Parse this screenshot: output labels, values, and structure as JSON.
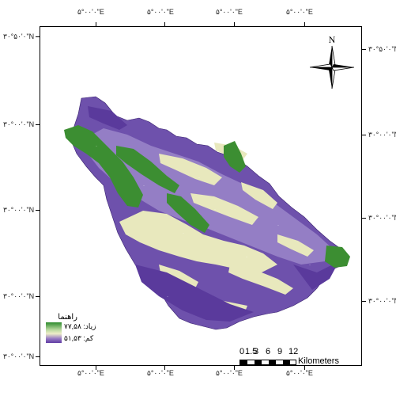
{
  "graticule": {
    "top_labels": [
      "۵°۰۰'۰\"E",
      "۵°۰۰'۰\"E",
      "۵°۰۰'۰\"E",
      "۵°۰۰'۰\"E"
    ],
    "bottom_labels": [
      "۵°۰۰'۰\"E",
      "۵°۰۰'۰\"E",
      "۵°۰۰'۰\"E",
      "۵°۰۰'۰\"E"
    ],
    "left_labels": [
      "۳۰°۵۰'۰\"N",
      "۳۰°۰۰'۰\"N",
      "۳۰°۰۰'۰\"N",
      "۳۰°۰۰'۰\"N",
      "۳۰°۰۰'۰\"N"
    ],
    "right_labels": [
      "۳۰°۵۰'۰\"N",
      "۳۰°۰۰'۰\"N",
      "۳۰°۰۰'۰\"N",
      "۳۰°۰۰'۰\"N"
    ]
  },
  "north_arrow": {
    "label": "N",
    "icon": "north-arrow-icon"
  },
  "legend": {
    "title": "راهنما",
    "high_label": "زیاد: ۷۷,۵۸",
    "low_label": "کم: ۵۱,۵۳",
    "colors": {
      "high": "#2e8b2e",
      "mid": "#eeeec8",
      "low": "#5e3aa3"
    }
  },
  "scale": {
    "numbers": [
      "0",
      "1.5",
      "3",
      "6",
      "9",
      "12"
    ],
    "units": "Kilometers"
  },
  "map_colors": {
    "purple_dark": "#5b3a9e",
    "purple_light": "#9a86c8",
    "cream": "#e9e9c0",
    "green": "#3a8f32"
  }
}
